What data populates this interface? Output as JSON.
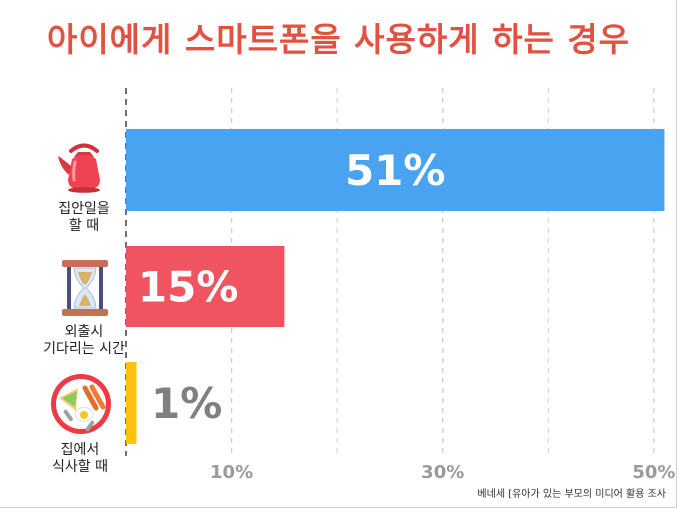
{
  "title": "아이에게 스마트폰을 사용하게 하는 경우",
  "source": "베네세 [유아가 있는 부모의 미디어 활용 조사",
  "chart_data": {
    "type": "bar",
    "orientation": "horizontal",
    "categories": [
      [
        "집안일을",
        "할 때"
      ],
      [
        "외출시",
        "기다리는 시간"
      ],
      [
        "집에서",
        "식사할 때"
      ]
    ],
    "values": [
      51,
      15,
      1
    ],
    "value_labels": [
      "51%",
      "15%",
      "1%"
    ],
    "colors": [
      "#4aa3f0",
      "#f05460",
      "#ffc20e"
    ],
    "value_label_colors": [
      "#ffffff",
      "#ffffff",
      "#808080"
    ],
    "xlim": [
      0,
      52
    ],
    "xticks": [
      10,
      30,
      50
    ],
    "xtick_labels": [
      "10%",
      "30%",
      "50%"
    ],
    "grid": true
  },
  "icons": [
    "kettle-icon",
    "hourglass-icon",
    "meal-plate-icon"
  ]
}
